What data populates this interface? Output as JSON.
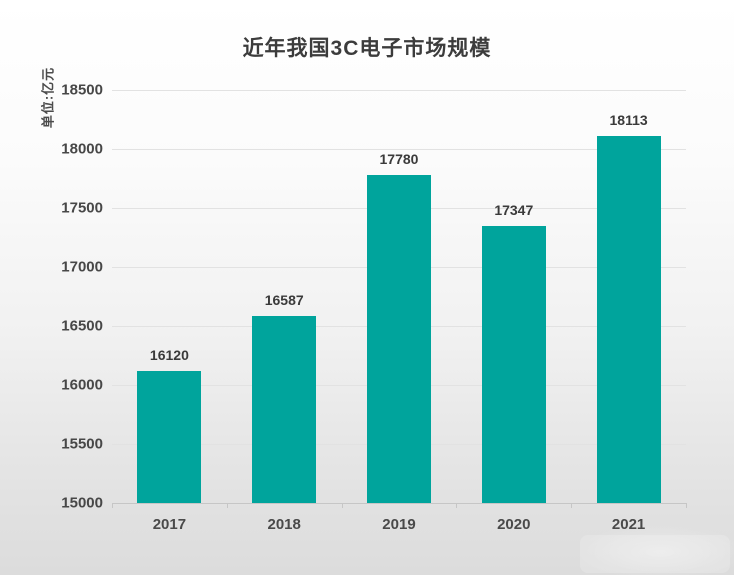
{
  "chart_data": {
    "type": "bar",
    "title": "近年我国3C电子市场规模",
    "unit_label": "单位:亿元",
    "categories": [
      "2017",
      "2018",
      "2019",
      "2020",
      "2021"
    ],
    "values": [
      16120,
      16587,
      17780,
      17347,
      18113
    ],
    "value_labels_shown": true,
    "xlabel": "",
    "ylabel": "单位:亿元",
    "ylim": [
      15000,
      18500
    ],
    "yticks": [
      15000,
      15500,
      16000,
      16500,
      17000,
      17500,
      18000,
      18500
    ],
    "grid": "horizontal",
    "legend": "none",
    "colors": {
      "bar": "#00a49c",
      "title_text": "#3c3c3c",
      "tick_text": "#474747",
      "value_label_text": "#3a3a3a",
      "gridline": "#e2e2e2",
      "axis_line": "#c6c6c6",
      "background_top": "#ffffff",
      "background_bottom": "#dcdcdc"
    }
  }
}
